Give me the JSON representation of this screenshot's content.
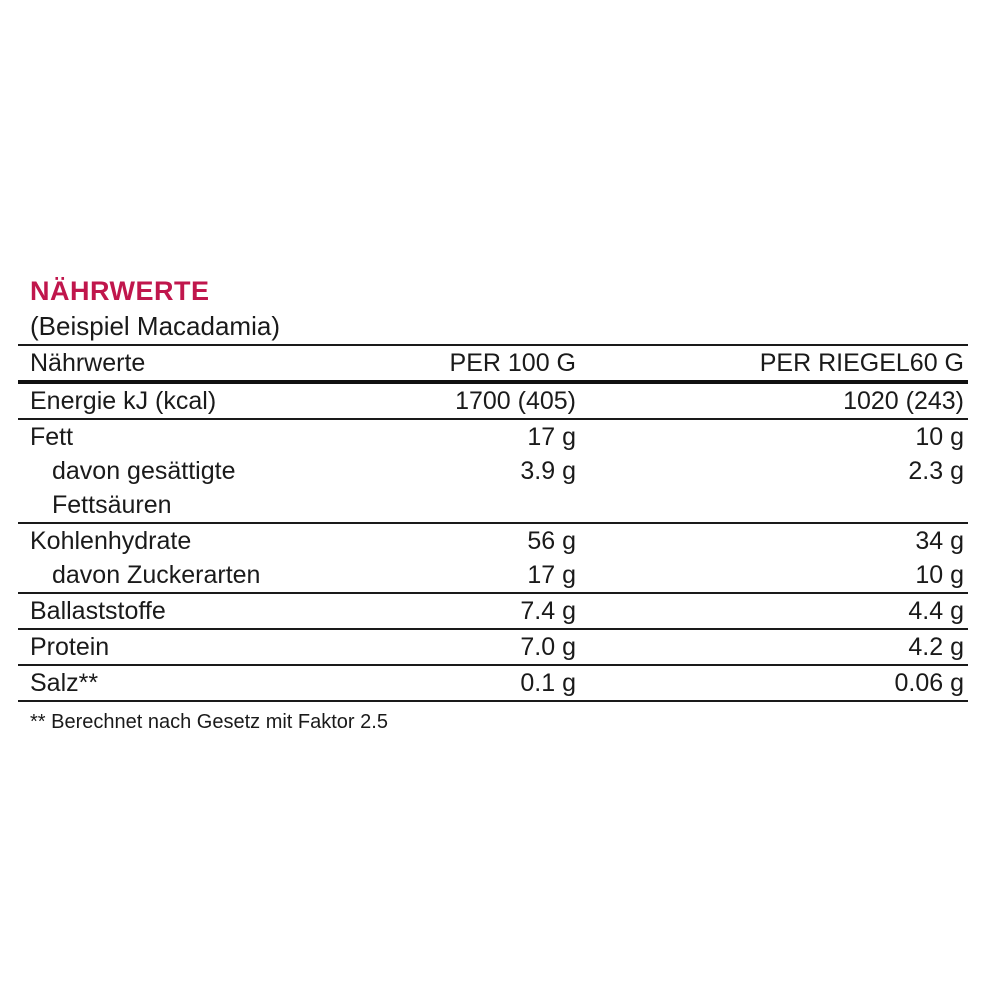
{
  "page": {
    "title": "NÄHRWERTE",
    "subtitle": "(Beispiel Macadamia)",
    "title_color": "#c0164c",
    "footnote": "** Berechnet nach Gesetz mit Faktor 2.5"
  },
  "table": {
    "columns": [
      "Nährwerte",
      "PER 100 G",
      "PER RIEGEL60 G"
    ],
    "rows": [
      {
        "label": "Energie kJ (kcal)",
        "per100": "1700 (405)",
        "riegel": "1020 (243)",
        "indent": false,
        "border": true
      },
      {
        "label": "Fett",
        "per100": "17 g",
        "riegel": "10 g",
        "indent": false,
        "border": false
      },
      {
        "label": "davon gesättigte",
        "per100": "3.9 g",
        "riegel": "2.3 g",
        "indent": true,
        "border": false
      },
      {
        "label": "Fettsäuren",
        "per100": "",
        "riegel": "",
        "indent": true,
        "border": true
      },
      {
        "label": "Kohlenhydrate",
        "per100": "56 g",
        "riegel": "34 g",
        "indent": false,
        "border": false
      },
      {
        "label": "davon Zuckerarten",
        "per100": "17 g",
        "riegel": "10 g",
        "indent": true,
        "border": true
      },
      {
        "label": "Ballaststoffe",
        "per100": "7.4 g",
        "riegel": "4.4 g",
        "indent": false,
        "border": true
      },
      {
        "label": "Protein",
        "per100": "7.0 g",
        "riegel": "4.2 g",
        "indent": false,
        "border": true
      },
      {
        "label": "Salz**",
        "per100": "0.1 g",
        "riegel": "0.06 g",
        "indent": false,
        "border": true
      }
    ]
  }
}
